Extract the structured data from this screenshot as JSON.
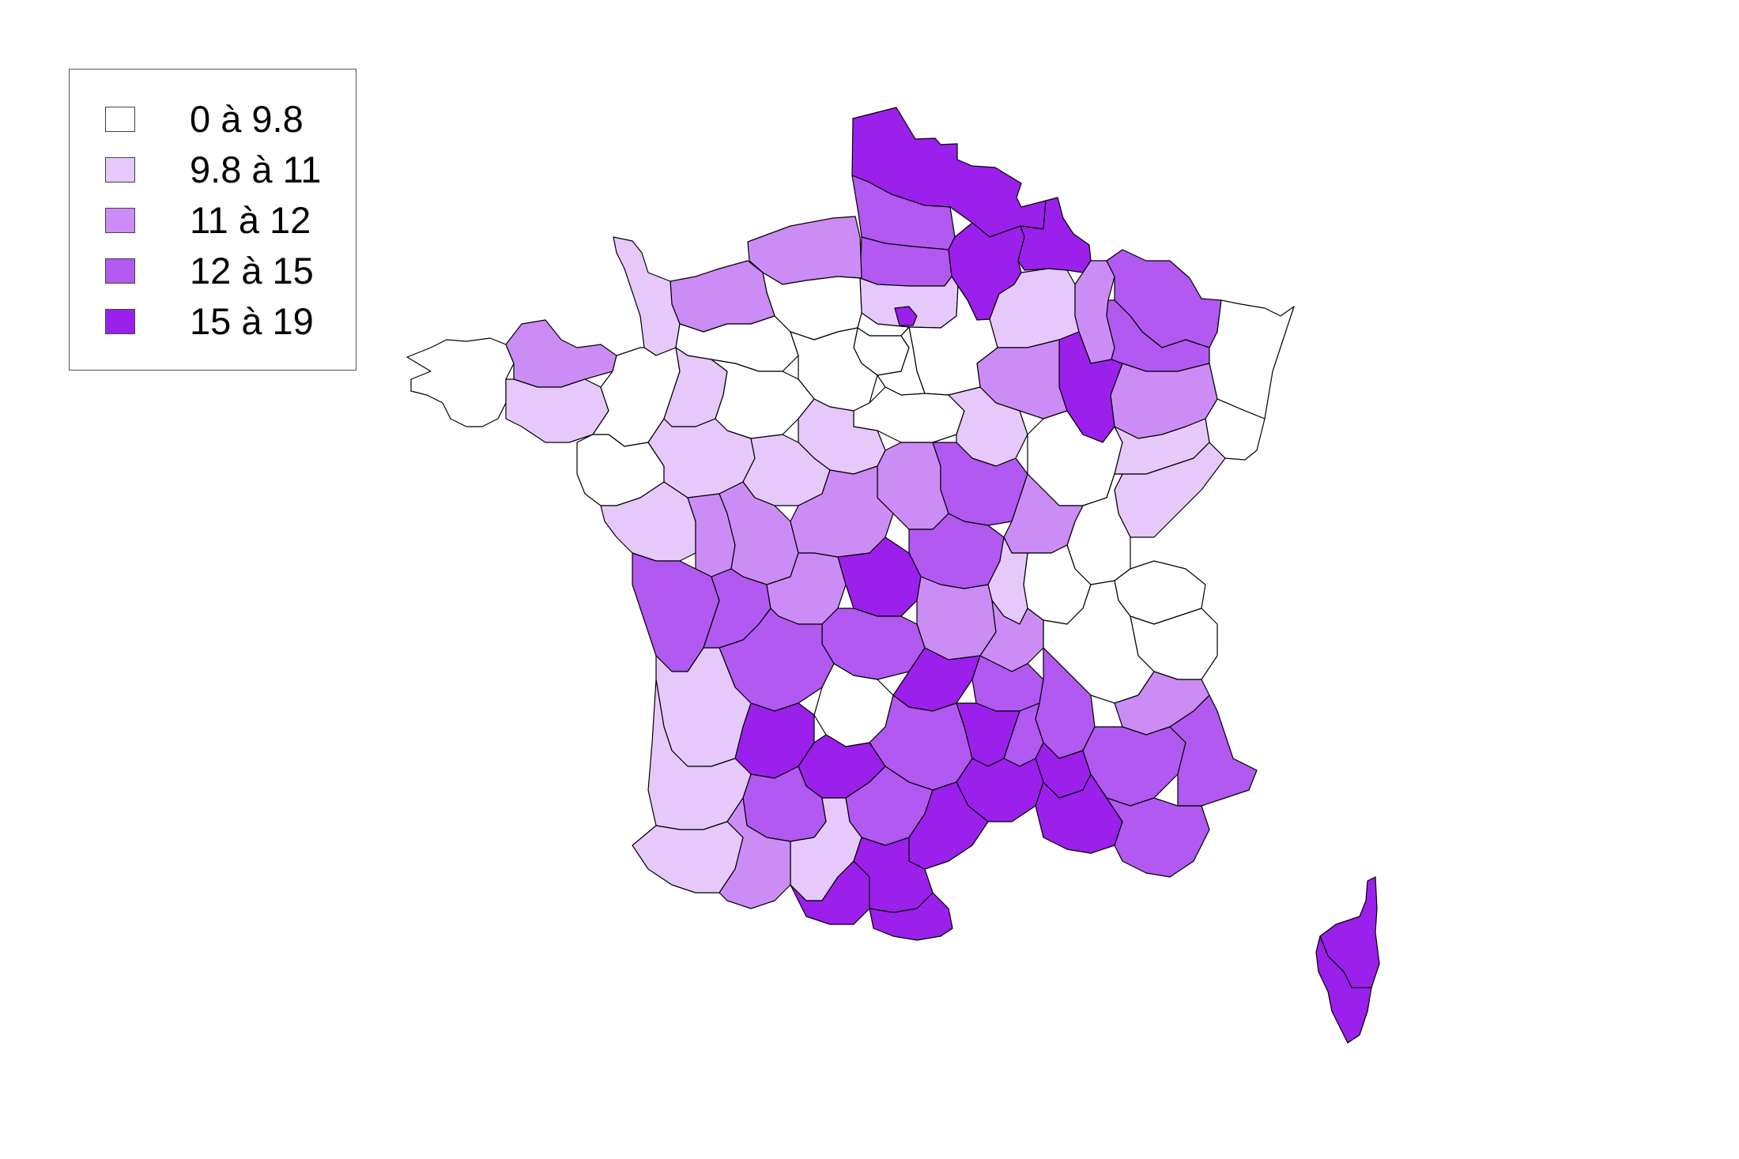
{
  "legend": {
    "items": [
      {
        "label": "0 à 9.8",
        "color": "#ffffff"
      },
      {
        "label": "9.8 à 11",
        "color": "#e6c8fa"
      },
      {
        "label": "11 à 12",
        "color": "#cc8cf5"
      },
      {
        "label": "12 à 15",
        "color": "#b159f0"
      },
      {
        "label": "15 à 19",
        "color": "#9b20ec"
      }
    ]
  },
  "map": {
    "region": "France",
    "unit_level": "departements",
    "class_colors": [
      "#ffffff",
      "#e6c8fa",
      "#cc8cf5",
      "#b159f0",
      "#9b20ec"
    ]
  }
}
